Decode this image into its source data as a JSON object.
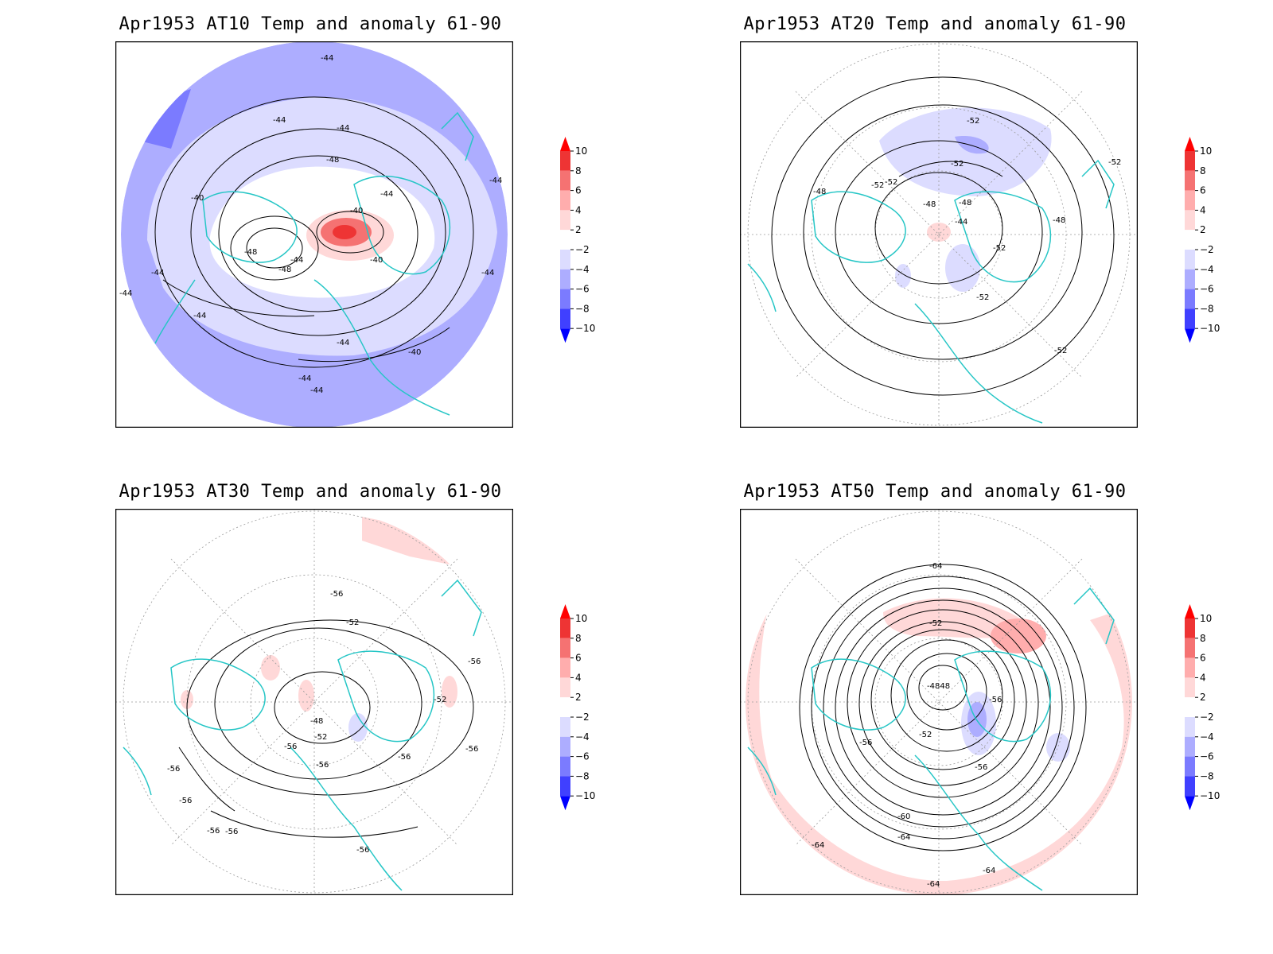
{
  "colors": {
    "positive": [
      "#ffd8d8",
      "#ffadad",
      "#f57272",
      "#ee3434",
      "#ff0000"
    ],
    "negative": [
      "#dcdcff",
      "#adadff",
      "#7b7bff",
      "#4040ff",
      "#0000ff"
    ],
    "coast": "#26c6c6",
    "contour": "#000000",
    "grid": "#9a9a9a"
  },
  "colorbar": {
    "labels": [
      "10",
      "8",
      "6",
      "4",
      "2",
      "−2",
      "−4",
      "−6",
      "−8",
      "−10"
    ]
  },
  "panels": [
    {
      "title": "Apr1953 AT10 Temp and anomaly 61-90",
      "labels": [
        "-44",
        "-44",
        "-44",
        "-48",
        "-40",
        "-40",
        "-44",
        "-48",
        "-44",
        "-48",
        "-40",
        "-44",
        "-44",
        "-44",
        "-44",
        "-40",
        "-44",
        "-44",
        "-44",
        "-44"
      ]
    },
    {
      "title": "Apr1953 AT20 Temp and anomaly 61-90",
      "labels": [
        "-52",
        "-52",
        "-52",
        "-52",
        "-48",
        "-48",
        "-48",
        "-44",
        "-52",
        "-48",
        "-52",
        "-52",
        "-52"
      ]
    },
    {
      "title": "Apr1953 AT30 Temp and anomaly 61-90",
      "labels": [
        "-56",
        "-52",
        "-56",
        "-52",
        "-48",
        "-52",
        "-56",
        "-56",
        "-56",
        "-56",
        "-56",
        "-56",
        "-56",
        "-56",
        "-56"
      ]
    },
    {
      "title": "Apr1953 AT50 Temp and anomaly 61-90",
      "labels": [
        "-64",
        "-52",
        "-4848",
        "-56",
        "-52",
        "-56",
        "-56",
        "-60",
        "-64",
        "-64",
        "-64",
        "-64"
      ]
    }
  ]
}
